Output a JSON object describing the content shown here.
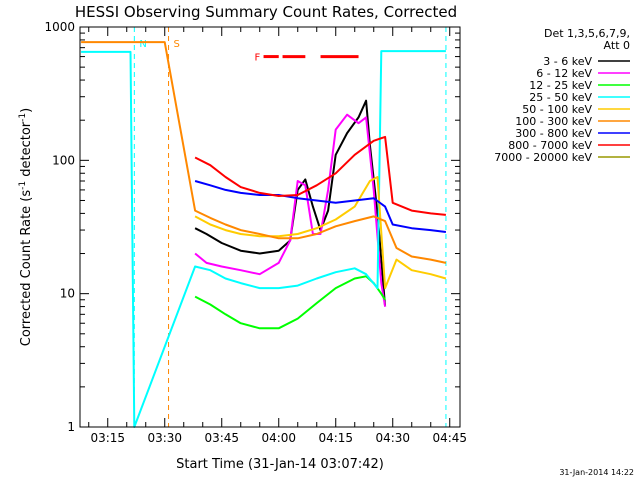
{
  "chart_data": {
    "type": "line",
    "title": "HESSI Observing Summary Count Rates, Corrected",
    "xlabel": "Start Time (31-Jan-14 03:07:42)",
    "ylabel": "Corrected Count Rate (s",
    "ylabel_sup1": "-1",
    "ylabel_mid": " detector",
    "ylabel_sup2": "-1",
    "ylabel_end": ")",
    "yscale": "log",
    "ylim": [
      1,
      1000
    ],
    "xlim": [
      "03:07:42",
      "04:47:42"
    ],
    "x_ticks": [
      "03:15",
      "03:30",
      "03:45",
      "04:00",
      "04:15",
      "04:30",
      "04:45"
    ],
    "y_ticks": [
      "1",
      "10",
      "100",
      "1000"
    ],
    "grid": false,
    "footer_date": "31-Jan-2014 14:22",
    "legend": {
      "placement": "right",
      "header_line1": "Det 1,3,5,6,7,9,",
      "header_line2": "Att 0",
      "entries": [
        {
          "label": "3 - 6 keV",
          "color": "#000000"
        },
        {
          "label": "6 - 12 keV",
          "color": "#ff00ff"
        },
        {
          "label": "12 - 25 keV",
          "color": "#00ff00"
        },
        {
          "label": "25 - 50 keV",
          "color": "#00ffff"
        },
        {
          "label": "50 - 100 keV",
          "color": "#ffcc00"
        },
        {
          "label": "100 - 300 keV",
          "color": "#ff8800"
        },
        {
          "label": "300 - 800 keV",
          "color": "#0000ff"
        },
        {
          "label": "800 - 7000 keV",
          "color": "#ff0000"
        },
        {
          "label": "7000 - 20000 keV",
          "color": "#999900"
        }
      ]
    },
    "series": [
      {
        "name": "3 - 6 keV",
        "color": "#000000",
        "points": [
          [
            "03:38",
            31
          ],
          [
            "03:41",
            28
          ],
          [
            "03:45",
            24
          ],
          [
            "03:50",
            21
          ],
          [
            "03:55",
            20
          ],
          [
            "04:00",
            21
          ],
          [
            "04:03",
            25
          ],
          [
            "04:05",
            60
          ],
          [
            "04:07",
            72
          ],
          [
            "04:09",
            45
          ],
          [
            "04:11",
            30
          ],
          [
            "04:13",
            42
          ],
          [
            "04:15",
            110
          ],
          [
            "04:18",
            160
          ],
          [
            "04:21",
            210
          ],
          [
            "04:23",
            280
          ],
          [
            "04:24",
            130
          ],
          [
            "04:26",
            40
          ],
          [
            "04:28",
            8
          ]
        ]
      },
      {
        "name": "6 - 12 keV",
        "color": "#ff00ff",
        "points": [
          [
            "03:38",
            20
          ],
          [
            "03:41",
            17
          ],
          [
            "03:45",
            16
          ],
          [
            "03:50",
            15
          ],
          [
            "03:55",
            14
          ],
          [
            "04:00",
            17
          ],
          [
            "04:03",
            25
          ],
          [
            "04:05",
            70
          ],
          [
            "04:07",
            65
          ],
          [
            "04:09",
            28
          ],
          [
            "04:11",
            28
          ],
          [
            "04:13",
            60
          ],
          [
            "04:15",
            170
          ],
          [
            "04:18",
            220
          ],
          [
            "04:21",
            190
          ],
          [
            "04:23",
            210
          ],
          [
            "04:25",
            60
          ],
          [
            "04:27",
            12
          ],
          [
            "04:28",
            8
          ]
        ]
      },
      {
        "name": "12 - 25 keV",
        "color": "#00ff00",
        "points": [
          [
            "03:38",
            9.5
          ],
          [
            "03:42",
            8.3
          ],
          [
            "03:46",
            7
          ],
          [
            "03:50",
            6
          ],
          [
            "03:55",
            5.5
          ],
          [
            "04:00",
            5.5
          ],
          [
            "04:05",
            6.5
          ],
          [
            "04:10",
            8.5
          ],
          [
            "04:15",
            11
          ],
          [
            "04:20",
            13
          ],
          [
            "04:23",
            13.5
          ],
          [
            "04:25",
            12
          ],
          [
            "04:27",
            10
          ],
          [
            "04:28",
            9
          ]
        ]
      },
      {
        "name": "25 - 50 keV",
        "color": "#00ffff",
        "points": [
          [
            "03:08",
            650
          ],
          [
            "03:21",
            650
          ],
          [
            "03:22",
            1
          ],
          [
            "03:38",
            16
          ],
          [
            "03:42",
            15
          ],
          [
            "03:46",
            13
          ],
          [
            "03:50",
            12
          ],
          [
            "03:55",
            11
          ],
          [
            "04:00",
            11
          ],
          [
            "04:05",
            11.5
          ],
          [
            "04:10",
            13
          ],
          [
            "04:15",
            14.5
          ],
          [
            "04:20",
            15.5
          ],
          [
            "04:23",
            14
          ],
          [
            "04:26",
            11
          ],
          [
            "04:27",
            660
          ],
          [
            "04:40",
            660
          ],
          [
            "04:44",
            660
          ]
        ]
      },
      {
        "name": "50 - 100 keV",
        "color": "#ffcc00",
        "points": [
          [
            "03:38",
            38
          ],
          [
            "03:42",
            33
          ],
          [
            "03:46",
            30
          ],
          [
            "03:50",
            28
          ],
          [
            "03:55",
            27
          ],
          [
            "04:00",
            27
          ],
          [
            "04:05",
            28
          ],
          [
            "04:10",
            31
          ],
          [
            "04:15",
            36
          ],
          [
            "04:20",
            45
          ],
          [
            "04:24",
            70
          ],
          [
            "04:26",
            75
          ],
          [
            "04:28",
            11
          ],
          [
            "04:31",
            18
          ],
          [
            "04:35",
            15
          ],
          [
            "04:40",
            14
          ],
          [
            "04:44",
            13
          ]
        ]
      },
      {
        "name": "100 - 300 keV",
        "color": "#ff8800",
        "points": [
          [
            "03:08",
            770
          ],
          [
            "03:30",
            770
          ],
          [
            "03:38",
            42
          ],
          [
            "03:42",
            37
          ],
          [
            "03:46",
            33
          ],
          [
            "03:50",
            30
          ],
          [
            "03:55",
            28
          ],
          [
            "04:00",
            26
          ],
          [
            "04:05",
            26
          ],
          [
            "04:10",
            28
          ],
          [
            "04:15",
            32
          ],
          [
            "04:20",
            35
          ],
          [
            "04:25",
            38
          ],
          [
            "04:28",
            35
          ],
          [
            "04:31",
            22
          ],
          [
            "04:35",
            19
          ],
          [
            "04:40",
            18
          ],
          [
            "04:44",
            17
          ]
        ]
      },
      {
        "name": "300 - 800 keV",
        "color": "#0000ff",
        "points": [
          [
            "03:38",
            70
          ],
          [
            "03:42",
            65
          ],
          [
            "03:46",
            60
          ],
          [
            "03:50",
            57
          ],
          [
            "03:55",
            55
          ],
          [
            "04:00",
            55
          ],
          [
            "04:05",
            52
          ],
          [
            "04:10",
            50
          ],
          [
            "04:15",
            48
          ],
          [
            "04:20",
            50
          ],
          [
            "04:25",
            52
          ],
          [
            "04:28",
            45
          ],
          [
            "04:30",
            33
          ],
          [
            "04:35",
            31
          ],
          [
            "04:40",
            30
          ],
          [
            "04:44",
            29
          ]
        ]
      },
      {
        "name": "800 - 7000 keV",
        "color": "#ff0000",
        "points": [
          [
            "03:38",
            105
          ],
          [
            "03:42",
            92
          ],
          [
            "03:46",
            75
          ],
          [
            "03:50",
            63
          ],
          [
            "03:55",
            57
          ],
          [
            "04:00",
            54
          ],
          [
            "04:05",
            55
          ],
          [
            "04:10",
            65
          ],
          [
            "04:15",
            80
          ],
          [
            "04:20",
            110
          ],
          [
            "04:25",
            140
          ],
          [
            "04:28",
            150
          ],
          [
            "04:30",
            48
          ],
          [
            "04:35",
            42
          ],
          [
            "04:40",
            40
          ],
          [
            "04:44",
            39
          ]
        ]
      }
    ],
    "annotations": [
      {
        "label": "N",
        "color": "#00ffff",
        "x": "03:22"
      },
      {
        "label": "S",
        "color": "#ff8800",
        "x": "03:31"
      },
      {
        "label": "F",
        "color": "#ff0000",
        "x": "03:56"
      }
    ]
  }
}
